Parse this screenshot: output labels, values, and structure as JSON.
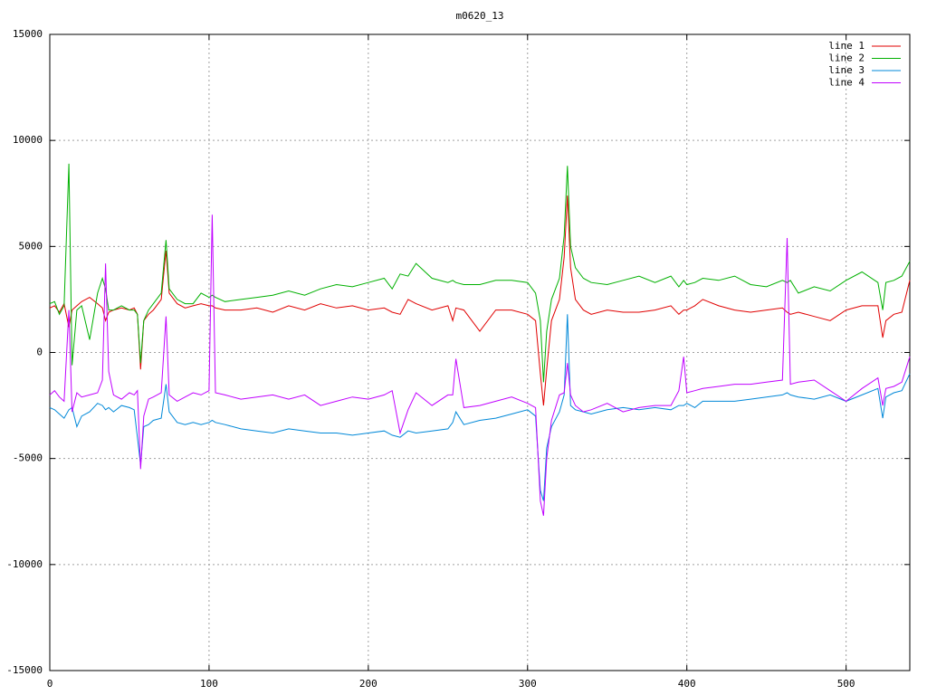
{
  "chart_data": {
    "type": "line",
    "title": "m0620_13",
    "x": [
      0,
      3,
      6,
      9,
      12,
      14,
      17,
      20,
      25,
      30,
      33,
      35,
      37,
      40,
      45,
      50,
      53,
      55,
      57,
      59,
      62,
      65,
      70,
      73,
      75,
      80,
      85,
      90,
      95,
      100,
      102,
      104,
      110,
      120,
      130,
      140,
      150,
      160,
      170,
      180,
      190,
      200,
      210,
      215,
      220,
      225,
      230,
      240,
      250,
      253,
      255,
      260,
      270,
      280,
      290,
      300,
      305,
      308,
      310,
      312,
      315,
      320,
      323,
      325,
      327,
      330,
      335,
      340,
      350,
      360,
      370,
      380,
      390,
      395,
      398,
      400,
      405,
      410,
      420,
      430,
      440,
      450,
      460,
      463,
      465,
      470,
      480,
      490,
      500,
      510,
      520,
      523,
      525,
      530,
      535,
      540
    ],
    "series": [
      {
        "name": "line 1",
        "color": "#e00000",
        "values": [
          2100,
          2200,
          1900,
          2300,
          1200,
          2000,
          2200,
          2400,
          2600,
          2300,
          2100,
          1500,
          1900,
          2000,
          2100,
          2000,
          2100,
          1800,
          -800,
          1500,
          1800,
          2000,
          2500,
          4800,
          2800,
          2300,
          2100,
          2200,
          2300,
          2200,
          2200,
          2100,
          2000,
          2000,
          2100,
          1900,
          2200,
          2000,
          2300,
          2100,
          2200,
          2000,
          2100,
          1900,
          1800,
          2500,
          2300,
          2000,
          2200,
          1500,
          2100,
          2000,
          1000,
          2000,
          2000,
          1800,
          1500,
          -1000,
          -2500,
          -800,
          1500,
          2500,
          4500,
          7400,
          4000,
          2500,
          2000,
          1800,
          2000,
          1900,
          1900,
          2000,
          2200,
          1800,
          2000,
          2000,
          2200,
          2500,
          2200,
          2000,
          1900,
          2000,
          2100,
          1900,
          1800,
          1900,
          1700,
          1500,
          2000,
          2200,
          2200,
          700,
          1500,
          1800,
          1900,
          3400
        ]
      },
      {
        "name": "line 2",
        "color": "#00b000",
        "values": [
          2300,
          2400,
          1800,
          2200,
          8900,
          -600,
          2000,
          2200,
          600,
          2800,
          3500,
          3000,
          2000,
          2000,
          2200,
          2000,
          2000,
          1800,
          -500,
          1500,
          2000,
          2300,
          2800,
          5300,
          3000,
          2500,
          2300,
          2300,
          2800,
          2600,
          2700,
          2600,
          2400,
          2500,
          2600,
          2700,
          2900,
          2700,
          3000,
          3200,
          3100,
          3300,
          3500,
          3000,
          3700,
          3600,
          4200,
          3500,
          3300,
          3400,
          3300,
          3200,
          3200,
          3400,
          3400,
          3300,
          2800,
          1500,
          -1400,
          1000,
          2500,
          3500,
          5500,
          8800,
          5000,
          4000,
          3500,
          3300,
          3200,
          3400,
          3600,
          3300,
          3600,
          3100,
          3400,
          3200,
          3300,
          3500,
          3400,
          3600,
          3200,
          3100,
          3400,
          3300,
          3400,
          2800,
          3100,
          2900,
          3400,
          3800,
          3300,
          2000,
          3300,
          3400,
          3600,
          4300
        ]
      },
      {
        "name": "line 3",
        "color": "#0088d8",
        "values": [
          -2600,
          -2700,
          -2900,
          -3100,
          -2700,
          -2600,
          -3500,
          -3000,
          -2800,
          -2400,
          -2500,
          -2700,
          -2600,
          -2800,
          -2500,
          -2600,
          -2700,
          -4000,
          -5300,
          -3500,
          -3400,
          -3200,
          -3100,
          -1500,
          -2800,
          -3300,
          -3400,
          -3300,
          -3400,
          -3300,
          -3200,
          -3300,
          -3400,
          -3600,
          -3700,
          -3800,
          -3600,
          -3700,
          -3800,
          -3800,
          -3900,
          -3800,
          -3700,
          -3900,
          -4000,
          -3700,
          -3800,
          -3700,
          -3600,
          -3300,
          -2800,
          -3400,
          -3200,
          -3100,
          -2900,
          -2700,
          -3000,
          -6500,
          -7000,
          -4500,
          -3500,
          -2800,
          -2000,
          1800,
          -2500,
          -2700,
          -2800,
          -2900,
          -2700,
          -2600,
          -2700,
          -2600,
          -2700,
          -2500,
          -2500,
          -2400,
          -2600,
          -2300,
          -2300,
          -2300,
          -2200,
          -2100,
          -2000,
          -1900,
          -2000,
          -2100,
          -2200,
          -2000,
          -2300,
          -2000,
          -1700,
          -3100,
          -2100,
          -1900,
          -1800,
          -1000
        ]
      },
      {
        "name": "line 4",
        "color": "#c000ff",
        "values": [
          -2000,
          -1800,
          -2100,
          -2300,
          2000,
          -2800,
          -1900,
          -2100,
          -2000,
          -1900,
          -1300,
          4200,
          -900,
          -2000,
          -2200,
          -1900,
          -2000,
          -1800,
          -5500,
          -3000,
          -2200,
          -2100,
          -1900,
          1700,
          -2000,
          -2300,
          -2100,
          -1900,
          -2000,
          -1800,
          6500,
          -1900,
          -2000,
          -2200,
          -2100,
          -2000,
          -2200,
          -2000,
          -2500,
          -2300,
          -2100,
          -2200,
          -2000,
          -1800,
          -3800,
          -2700,
          -1900,
          -2500,
          -2000,
          -2000,
          -300,
          -2600,
          -2500,
          -2300,
          -2100,
          -2400,
          -2600,
          -7000,
          -7700,
          -5000,
          -3200,
          -2000,
          -1900,
          -500,
          -2000,
          -2500,
          -2800,
          -2700,
          -2400,
          -2800,
          -2600,
          -2500,
          -2500,
          -1800,
          -200,
          -1900,
          -1800,
          -1700,
          -1600,
          -1500,
          -1500,
          -1400,
          -1300,
          5400,
          -1500,
          -1400,
          -1300,
          -1800,
          -2300,
          -1700,
          -1200,
          -2500,
          -1700,
          -1600,
          -1400,
          -200
        ]
      }
    ],
    "xlim": [
      0,
      540
    ],
    "xticks": [
      0,
      100,
      200,
      300,
      400,
      500
    ],
    "ylim": [
      -15000,
      15000
    ],
    "yticks": [
      -15000,
      -10000,
      -5000,
      0,
      5000,
      10000,
      15000
    ],
    "grid": true,
    "legend": "top-right"
  }
}
